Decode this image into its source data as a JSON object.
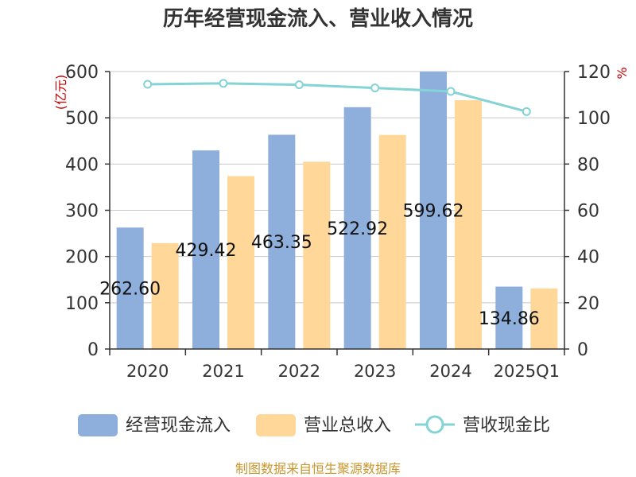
{
  "chart_data": {
    "type": "bar",
    "title": "历年经营现金流入、营业收入情况",
    "left_unit": "(亿元)",
    "right_unit": "%",
    "categories": [
      "2020",
      "2021",
      "2022",
      "2023",
      "2024",
      "2025Q1"
    ],
    "series": [
      {
        "name": "经营现金流入",
        "type": "bar",
        "axis": "left",
        "color": "#8eaedb",
        "values": [
          262.6,
          429.42,
          463.35,
          522.92,
          599.62,
          134.86
        ]
      },
      {
        "name": "营业总收入",
        "type": "bar",
        "axis": "left",
        "color": "#ffd899",
        "values": [
          229,
          374,
          405,
          463,
          538,
          131
        ]
      },
      {
        "name": "营收现金比",
        "type": "line",
        "axis": "right",
        "color": "#84d3d5",
        "values": [
          114.5,
          114.9,
          114.3,
          112.9,
          111.4,
          102.7
        ]
      }
    ],
    "data_labels": [
      "262.60",
      "429.42",
      "463.35",
      "522.92",
      "599.62",
      "134.86"
    ],
    "y_left": {
      "min": 0,
      "max": 600,
      "ticks": [
        "0",
        "100",
        "200",
        "300",
        "400",
        "500",
        "600"
      ]
    },
    "y_right": {
      "min": 0,
      "max": 120,
      "ticks": [
        "0",
        "20",
        "40",
        "60",
        "80",
        "100",
        "120"
      ]
    },
    "grid": true,
    "legend_position": "bottom"
  },
  "source": "制图数据来自恒生聚源数据库"
}
